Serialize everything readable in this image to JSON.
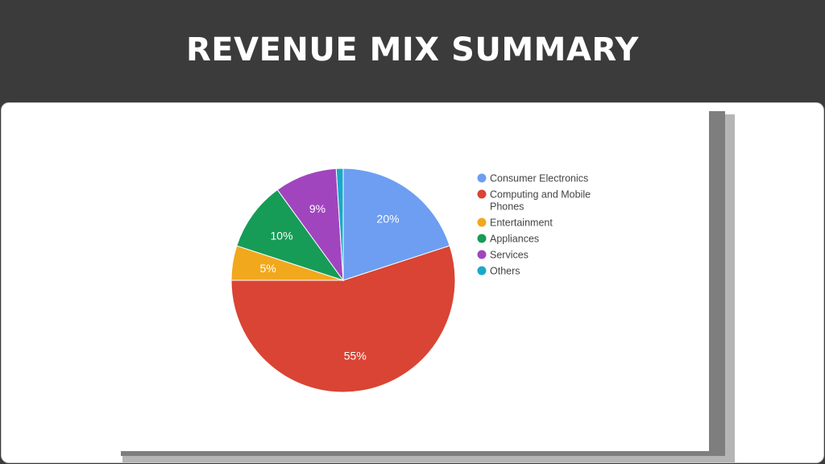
{
  "header": {
    "title": "REVENUE MIX SUMMARY"
  },
  "chart_data": {
    "type": "pie",
    "categories": [
      "Consumer Electronics",
      "Computing and Mobile Phones",
      "Entertainment",
      "Appliances",
      "Services",
      "Others"
    ],
    "values": [
      20,
      55,
      5,
      10,
      9,
      1
    ],
    "labels": [
      "20%",
      "55%",
      "5%",
      "10%",
      "9%",
      ""
    ],
    "colors": [
      "#6d9ef1",
      "#d94434",
      "#f2a81d",
      "#169c57",
      "#a145bf",
      "#1aa8c8"
    ],
    "legend_position": "right",
    "title": "",
    "xlabel": "",
    "ylabel": ""
  }
}
